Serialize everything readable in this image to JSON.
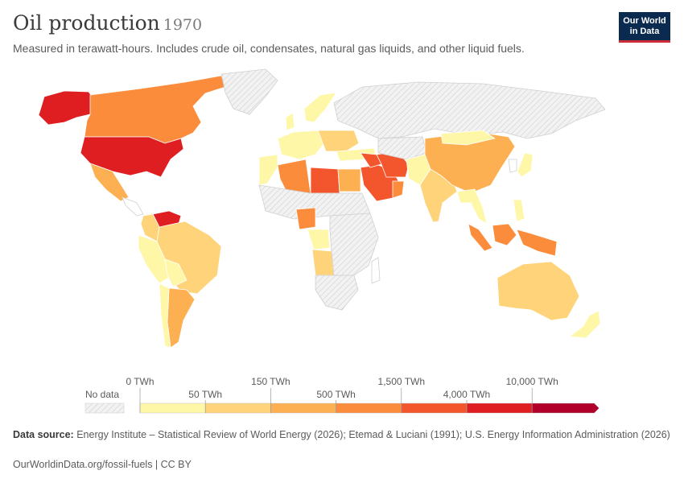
{
  "header": {
    "title": "Oil production",
    "year": "1970",
    "subtitle": "Measured in terawatt-hours. Includes crude oil, condensates, natural gas liquids, and other liquid fuels."
  },
  "logo": {
    "line1": "Our World",
    "line2": "in Data"
  },
  "legend": {
    "no_data_label": "No data",
    "top_ticks": [
      "0 TWh",
      "150 TWh",
      "1,500 TWh",
      "10,000 TWh"
    ],
    "bottom_ticks": [
      "50 TWh",
      "500 TWh",
      "4,000 TWh"
    ],
    "bins": [
      {
        "color": "#fff7a8"
      },
      {
        "color": "#fed37a"
      },
      {
        "color": "#fdb052"
      },
      {
        "color": "#fb8c3c"
      },
      {
        "color": "#f3552c"
      },
      {
        "color": "#df1e22"
      },
      {
        "color": "#b1002a"
      }
    ],
    "no_data_color": "#e6e6e6"
  },
  "footer": {
    "source_label": "Data source:",
    "source_text": "Energy Institute – Statistical Review of World Energy (2026); Etemad & Luciani (1991); U.S. Energy Information Administration (2026)",
    "url_text": "OurWorldinData.org/fossil-fuels | CC BY"
  },
  "map_regions": [
    {
      "name": "Alaska",
      "color": "#df1e22"
    },
    {
      "name": "Canada",
      "color": "#fb8c3c"
    },
    {
      "name": "Greenland",
      "color": "nodata"
    },
    {
      "name": "United States",
      "color": "#df1e22"
    },
    {
      "name": "Mexico",
      "color": "#fdb052"
    },
    {
      "name": "Central America",
      "color": "#ffffff"
    },
    {
      "name": "Venezuela",
      "color": "#df1e22"
    },
    {
      "name": "Colombia",
      "color": "#fed37a"
    },
    {
      "name": "Ecuador/Peru",
      "color": "#fff7a8"
    },
    {
      "name": "Brazil",
      "color": "#fed37a"
    },
    {
      "name": "Bolivia",
      "color": "#fff7a8"
    },
    {
      "name": "Argentina",
      "color": "#fdb052"
    },
    {
      "name": "Chile",
      "color": "#fff7a8"
    },
    {
      "name": "Russia/USSR",
      "color": "nodata"
    },
    {
      "name": "Norway",
      "color": "#fff7a8"
    },
    {
      "name": "United Kingdom",
      "color": "#fff7a8"
    },
    {
      "name": "Western Europe",
      "color": "#fff7a8"
    },
    {
      "name": "Eastern Europe",
      "color": "#fed37a"
    },
    {
      "name": "Turkey",
      "color": "#fff7a8"
    },
    {
      "name": "Algeria",
      "color": "#fb8c3c"
    },
    {
      "name": "Libya",
      "color": "#f3552c"
    },
    {
      "name": "Egypt",
      "color": "#fdb052"
    },
    {
      "name": "Morocco/W.Sahara",
      "color": "#fff7a8"
    },
    {
      "name": "Sahara region",
      "color": "nodata"
    },
    {
      "name": "Nigeria",
      "color": "#fb8c3c"
    },
    {
      "name": "Gabon/Congo",
      "color": "#fff7a8"
    },
    {
      "name": "Angola",
      "color": "#fed37a"
    },
    {
      "name": "Southern Africa",
      "color": "nodata"
    },
    {
      "name": "East Africa",
      "color": "nodata"
    },
    {
      "name": "Madagascar",
      "color": "#ffffff"
    },
    {
      "name": "Saudi Arabia",
      "color": "#f3552c"
    },
    {
      "name": "Iraq",
      "color": "#f3552c"
    },
    {
      "name": "Iran",
      "color": "#f3552c"
    },
    {
      "name": "Oman",
      "color": "#fb8c3c"
    },
    {
      "name": "Central Asia",
      "color": "nodata"
    },
    {
      "name": "Afghanistan/Pakistan",
      "color": "#fff7a8"
    },
    {
      "name": "India",
      "color": "#fed37a"
    },
    {
      "name": "China",
      "color": "#fdb052"
    },
    {
      "name": "Mongolia",
      "color": "#fff7a8"
    },
    {
      "name": "Southeast Asia",
      "color": "#fff7a8"
    },
    {
      "name": "Japan",
      "color": "#fff7a8"
    },
    {
      "name": "Korea",
      "color": "#ffffff"
    },
    {
      "name": "Sumatra",
      "color": "#fb8c3c"
    },
    {
      "name": "Borneo",
      "color": "#fb8c3c"
    },
    {
      "name": "Indonesia east",
      "color": "#fb8c3c"
    },
    {
      "name": "Philippines",
      "color": "#fff7a8"
    },
    {
      "name": "Australia",
      "color": "#fed37a"
    },
    {
      "name": "New Zealand",
      "color": "#fff7a8"
    }
  ]
}
